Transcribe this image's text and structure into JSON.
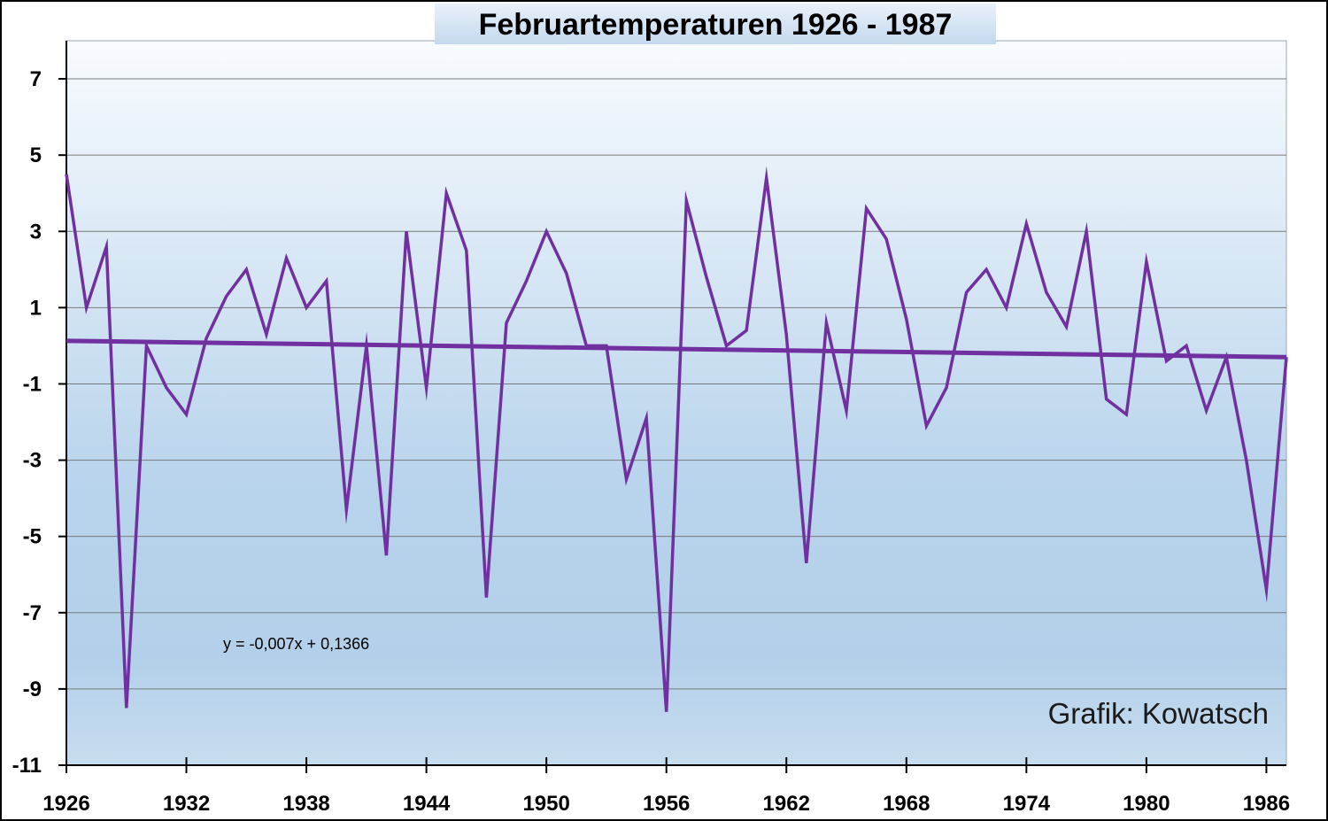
{
  "chart_data": {
    "type": "line",
    "title": "Februartemperaturen 1926 - 1987",
    "xlabel": "",
    "ylabel": "",
    "xlim": [
      1926,
      1987
    ],
    "ylim": [
      -11,
      8
    ],
    "x_ticks": [
      1926,
      1932,
      1938,
      1944,
      1950,
      1956,
      1962,
      1968,
      1974,
      1980,
      1986
    ],
    "y_ticks": [
      7,
      5,
      3,
      1,
      -1,
      -3,
      -5,
      -7,
      -9,
      -11
    ],
    "grid": true,
    "legend": "none",
    "series": [
      {
        "color": "#7030a0",
        "x": [
          1926,
          1927,
          1928,
          1929,
          1930,
          1931,
          1932,
          1933,
          1934,
          1935,
          1936,
          1937,
          1938,
          1939,
          1940,
          1941,
          1942,
          1943,
          1944,
          1945,
          1946,
          1947,
          1948,
          1949,
          1950,
          1951,
          1952,
          1953,
          1954,
          1955,
          1956,
          1957,
          1958,
          1959,
          1960,
          1961,
          1962,
          1963,
          1964,
          1965,
          1966,
          1967,
          1968,
          1969,
          1970,
          1971,
          1972,
          1973,
          1974,
          1975,
          1976,
          1977,
          1978,
          1979,
          1980,
          1981,
          1982,
          1983,
          1984,
          1985,
          1986,
          1987
        ],
        "values": [
          4.5,
          1.0,
          2.6,
          -9.5,
          0.0,
          -1.1,
          -1.8,
          0.2,
          1.3,
          2.0,
          0.3,
          2.3,
          1.0,
          1.7,
          -4.3,
          0.0,
          -5.5,
          3.0,
          -1.1,
          4.0,
          2.5,
          -6.6,
          0.6,
          1.7,
          3.0,
          1.9,
          0.0,
          0.0,
          -3.5,
          -1.9,
          -9.6,
          3.8,
          1.8,
          0.0,
          0.4,
          4.4,
          0.3,
          -5.7,
          0.6,
          -1.7,
          3.6,
          2.8,
          0.7,
          -2.1,
          -1.1,
          1.4,
          2.0,
          1.0,
          3.2,
          1.4,
          0.5,
          3.0,
          -1.4,
          -1.8,
          2.2,
          -0.4,
          0.0,
          -1.7,
          -0.3,
          -3.0,
          -6.4,
          -0.3
        ]
      }
    ],
    "trendline": {
      "color": "#7030a0",
      "slope": -0.007,
      "intercept": 0.1366,
      "label": "y = -0,007x + 0,1366"
    },
    "annotation": "Grafik: Kowatsch"
  }
}
